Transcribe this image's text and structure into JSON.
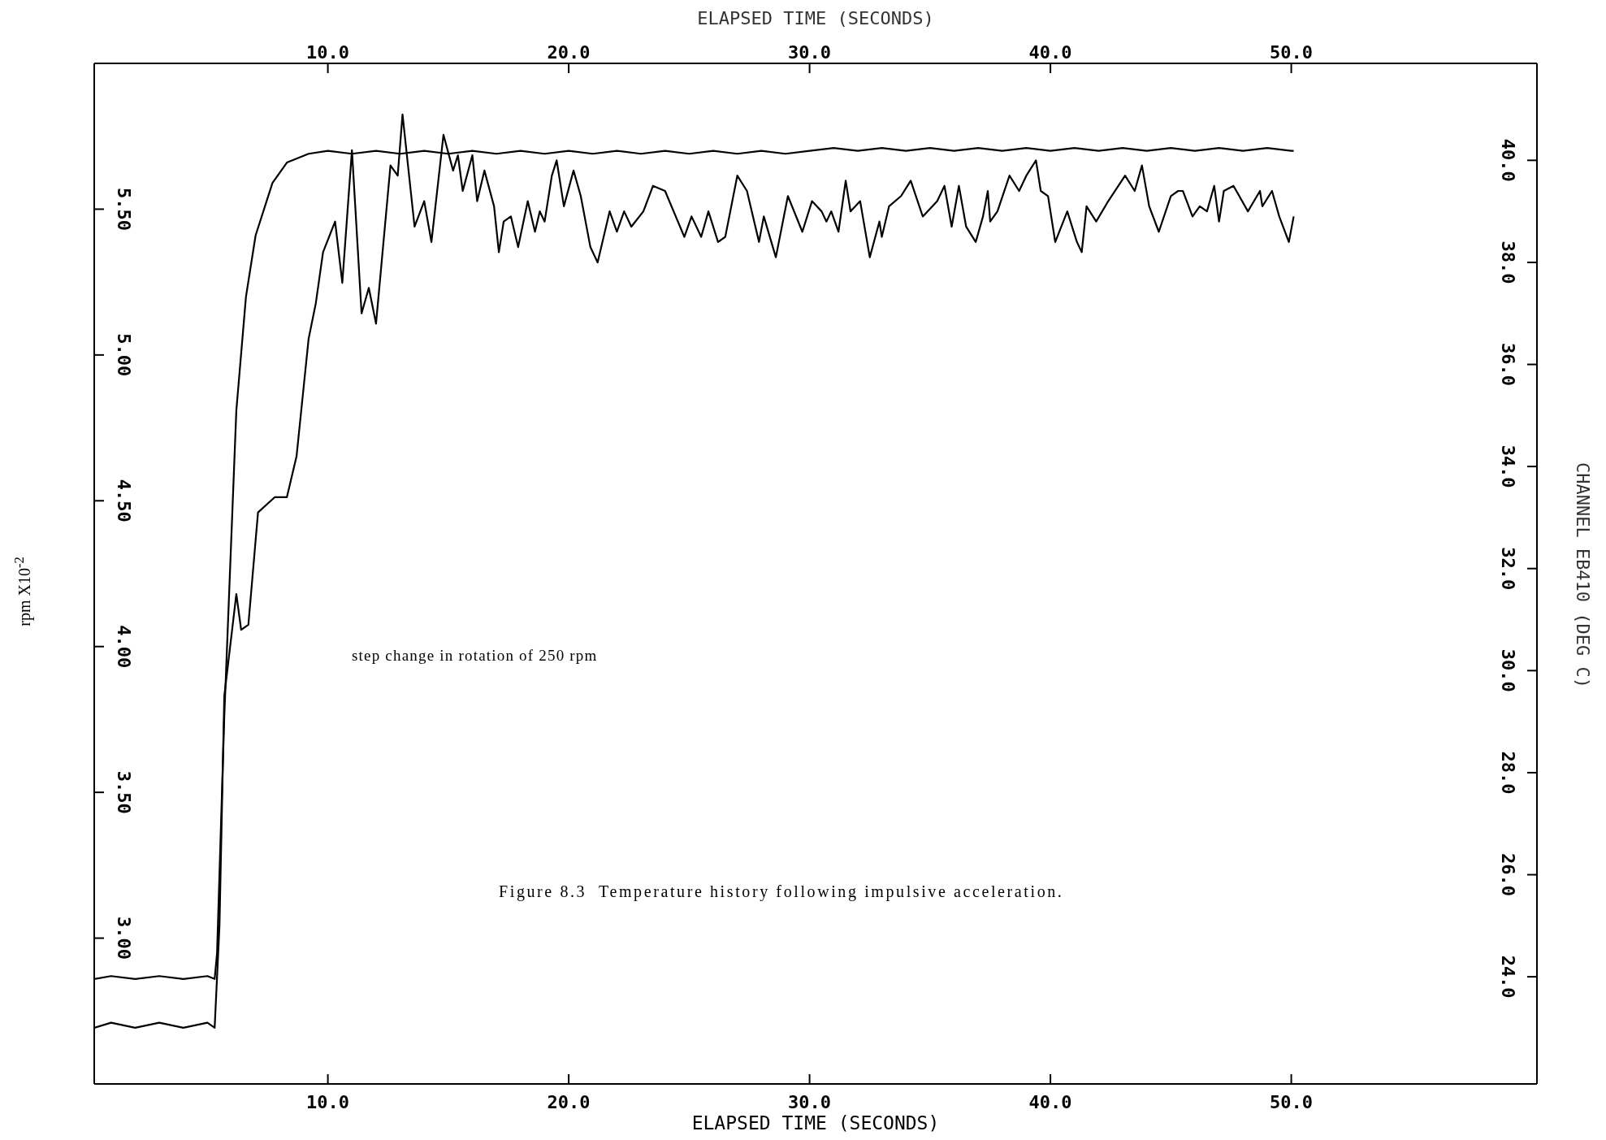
{
  "chart_data": {
    "type": "line",
    "xlabel": "ELAPSED TIME (SECONDS)",
    "x2label": "ELAPSED TIME (SECONDS)",
    "ylabel": "rpm X10$^{-2}$",
    "y2label": "CHANNEL EB410 (DEG C)",
    "annotations": [
      "step change in rotation of 250 rpm",
      "Figure 8.3  Temperature history following impulsive acceleration."
    ],
    "xlim": [
      0.3,
      60.2
    ],
    "xticks": [
      {
        "value": 10,
        "label": "10.0"
      },
      {
        "value": 20,
        "label": "20.0"
      },
      {
        "value": 30,
        "label": "30.0"
      },
      {
        "value": 40,
        "label": "40.0"
      },
      {
        "value": 50,
        "label": "50.0"
      }
    ],
    "x2lim": [
      0.3,
      60.2
    ],
    "x2ticks": [
      {
        "value": 10,
        "label": "10.0"
      },
      {
        "value": 20,
        "label": "20.0"
      },
      {
        "value": 30,
        "label": "30.0"
      },
      {
        "value": 40,
        "label": "40.0"
      },
      {
        "value": 50,
        "label": "50.0"
      }
    ],
    "ylim": [
      2.5,
      6.0
    ],
    "yticks": [
      {
        "value": 3,
        "label": "3.00"
      },
      {
        "value": 3.5,
        "label": "3.50"
      },
      {
        "value": 4,
        "label": "4.00"
      },
      {
        "value": 4.5,
        "label": "4.50"
      },
      {
        "value": 5,
        "label": "5.00"
      },
      {
        "value": 5.5,
        "label": "5.50"
      }
    ],
    "y2lim": [
      21.9,
      41.9
    ],
    "y2ticks": [
      {
        "value": 24,
        "label": "24.0"
      },
      {
        "value": 26,
        "label": "26.0"
      },
      {
        "value": 28,
        "label": "28.0"
      },
      {
        "value": 30,
        "label": "30.0"
      },
      {
        "value": 32,
        "label": "32.0"
      },
      {
        "value": 34,
        "label": "34.0"
      },
      {
        "value": 36,
        "label": "36.0"
      },
      {
        "value": 38,
        "label": "38.0"
      },
      {
        "value": 40,
        "label": "40.0"
      }
    ],
    "line_style": "solid",
    "series": [
      {
        "color": "#000000",
        "axis": "y",
        "x": [
          0.3,
          1,
          2,
          3,
          4,
          5,
          5.3,
          5.4,
          5.7,
          6.2,
          6.6,
          7.0,
          7.7,
          8.3,
          9.2,
          10,
          11,
          12,
          13,
          14,
          15,
          16,
          17,
          18,
          19,
          20,
          21,
          22,
          23,
          24,
          25,
          26,
          27,
          28,
          29,
          30,
          31,
          32,
          33,
          34,
          35,
          36,
          37,
          38,
          39,
          40,
          41,
          42,
          43,
          44,
          45,
          46,
          47,
          48,
          49,
          50,
          50.1
        ],
        "values": [
          2.86,
          2.87,
          2.86,
          2.87,
          2.86,
          2.87,
          2.86,
          2.95,
          3.76,
          4.81,
          5.2,
          5.41,
          5.59,
          5.66,
          5.69,
          5.7,
          5.69,
          5.7,
          5.69,
          5.7,
          5.69,
          5.7,
          5.69,
          5.7,
          5.69,
          5.7,
          5.69,
          5.7,
          5.69,
          5.7,
          5.69,
          5.7,
          5.69,
          5.7,
          5.69,
          5.7,
          5.71,
          5.7,
          5.71,
          5.7,
          5.71,
          5.7,
          5.71,
          5.7,
          5.71,
          5.7,
          5.71,
          5.7,
          5.71,
          5.7,
          5.71,
          5.7,
          5.71,
          5.7,
          5.71,
          5.7,
          5.7
        ]
      },
      {
        "color": "#000000",
        "axis": "y2",
        "x": [
          0.3,
          1,
          2,
          3,
          4,
          5,
          5.3,
          5.5,
          5.7,
          6.2,
          6.4,
          6.7,
          7.1,
          7.8,
          8.3,
          8.7,
          9.2,
          9.5,
          9.8,
          10.3,
          10.6,
          11.0,
          11.4,
          11.7,
          12.0,
          12.6,
          12.9,
          13.1,
          13.6,
          14.0,
          14.3,
          14.8,
          15.2,
          15.4,
          15.6,
          16.0,
          16.2,
          16.5,
          16.9,
          17.1,
          17.3,
          17.6,
          17.9,
          18.3,
          18.6,
          18.8,
          19.0,
          19.3,
          19.5,
          19.8,
          20.2,
          20.5,
          20.9,
          21.2,
          21.7,
          22.0,
          22.3,
          22.6,
          23.1,
          23.5,
          24.0,
          24.8,
          25.1,
          25.5,
          25.8,
          26.2,
          26.5,
          27.0,
          27.4,
          27.9,
          28.1,
          28.6,
          29.1,
          29.7,
          30.1,
          30.5,
          30.7,
          30.9,
          31.2,
          31.5,
          31.7,
          32.1,
          32.5,
          32.9,
          33.0,
          33.3,
          33.8,
          34.2,
          34.7,
          35.3,
          35.6,
          35.9,
          36.2,
          36.5,
          36.9,
          37.2,
          37.4,
          37.5,
          37.8,
          38.3,
          38.7,
          39.0,
          39.4,
          39.6,
          39.9,
          40.2,
          40.7,
          41.1,
          41.3,
          41.5,
          41.9,
          42.4,
          43.1,
          43.5,
          43.8,
          44.1,
          44.5,
          45.0,
          45.3,
          45.5,
          45.9,
          46.2,
          46.5,
          46.8,
          47.0,
          47.2,
          47.6,
          48.2,
          48.7,
          48.8,
          49.2,
          49.5,
          49.9,
          50.1
        ],
        "values": [
          23.0,
          23.1,
          23.0,
          23.1,
          23.0,
          23.1,
          23.0,
          25.0,
          29.5,
          31.5,
          30.8,
          30.9,
          33.1,
          33.4,
          33.4,
          34.2,
          36.5,
          37.2,
          38.2,
          38.8,
          37.6,
          40.2,
          37.0,
          37.5,
          36.8,
          39.9,
          39.7,
          40.9,
          38.7,
          39.2,
          38.4,
          40.5,
          39.8,
          40.1,
          39.4,
          40.1,
          39.2,
          39.8,
          39.1,
          38.2,
          38.8,
          38.9,
          38.3,
          39.2,
          38.6,
          39.0,
          38.8,
          39.7,
          40.0,
          39.1,
          39.8,
          39.3,
          38.3,
          38.0,
          39.0,
          38.6,
          39.0,
          38.7,
          39.0,
          39.5,
          39.4,
          38.5,
          38.9,
          38.5,
          39.0,
          38.4,
          38.5,
          39.7,
          39.4,
          38.4,
          38.9,
          38.1,
          39.3,
          38.6,
          39.2,
          39.0,
          38.8,
          39.0,
          38.6,
          39.6,
          39.0,
          39.2,
          38.1,
          38.8,
          38.5,
          39.1,
          39.3,
          39.6,
          38.9,
          39.2,
          39.5,
          38.7,
          39.5,
          38.7,
          38.4,
          38.9,
          39.4,
          38.8,
          39.0,
          39.7,
          39.4,
          39.7,
          40.0,
          39.4,
          39.3,
          38.4,
          39.0,
          38.4,
          38.2,
          39.1,
          38.8,
          39.2,
          39.7,
          39.4,
          39.9,
          39.1,
          38.6,
          39.3,
          39.4,
          39.4,
          38.9,
          39.1,
          39.0,
          39.5,
          38.8,
          39.4,
          39.5,
          39.0,
          39.4,
          39.1,
          39.4,
          38.9,
          38.4,
          38.9
        ]
      }
    ]
  }
}
